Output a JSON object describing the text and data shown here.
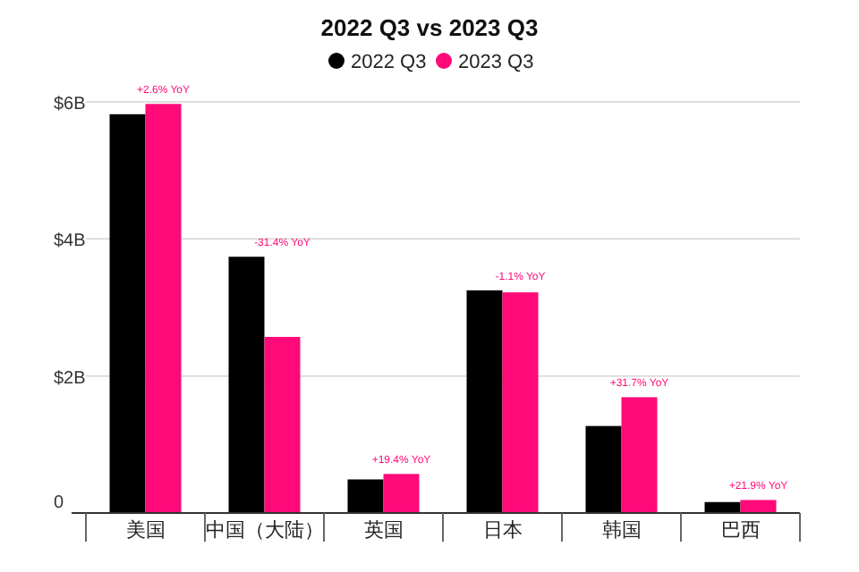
{
  "chart_data": {
    "type": "bar",
    "title": "2022 Q3 vs 2023 Q3",
    "categories": [
      "美国",
      "中国（大陆）",
      "英国",
      "日本",
      "韩国",
      "巴西"
    ],
    "series": [
      {
        "name": "2022 Q3",
        "color": "#000000",
        "values": [
          5.82,
          3.74,
          0.49,
          3.25,
          1.27,
          0.16
        ]
      },
      {
        "name": "2023 Q3",
        "color": "#ff0a78",
        "values": [
          5.97,
          2.57,
          0.57,
          3.22,
          1.69,
          0.19
        ]
      }
    ],
    "ylim": [
      0,
      6
    ],
    "yticks": [
      {
        "value": 0,
        "label": "0"
      },
      {
        "value": 2,
        "label": "$2B"
      },
      {
        "value": 4,
        "label": "$4B"
      },
      {
        "value": 6,
        "label": "$6B"
      }
    ],
    "grid": "y",
    "legend": "top",
    "annotations": [
      {
        "text": "+2.6% YoY",
        "x": "美国",
        "y": 5.97
      },
      {
        "text": "-31.4% YoY",
        "x": "中国（大陆）",
        "y": 3.74
      },
      {
        "text": "+19.4% YoY",
        "x": "英国",
        "y": 0.57
      },
      {
        "text": "-1.1% YoY",
        "x": "日本",
        "y": 3.25
      },
      {
        "text": "+31.7% YoY",
        "x": "韩国",
        "y": 1.69
      },
      {
        "text": "+21.9% YoY",
        "x": "巴西",
        "y": 0.19
      }
    ]
  }
}
